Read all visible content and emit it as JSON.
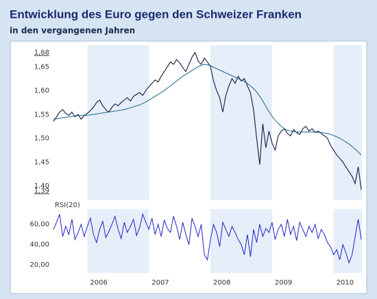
{
  "chart_data": [
    {
      "type": "line",
      "title": "Entwicklung des Euro gegen den Schweizer Franken",
      "subtitle": "in den vergangenen Jahren",
      "x": [
        2005.45,
        2005.5,
        2005.55,
        2005.6,
        2005.65,
        2005.7,
        2005.75,
        2005.8,
        2005.85,
        2005.9,
        2005.95,
        2006,
        2006.05,
        2006.1,
        2006.15,
        2006.2,
        2006.25,
        2006.3,
        2006.35,
        2006.4,
        2006.45,
        2006.5,
        2006.55,
        2006.6,
        2006.65,
        2006.7,
        2006.75,
        2006.8,
        2006.85,
        2006.9,
        2006.95,
        2007,
        2007.05,
        2007.1,
        2007.15,
        2007.2,
        2007.25,
        2007.3,
        2007.35,
        2007.4,
        2007.45,
        2007.5,
        2007.55,
        2007.6,
        2007.65,
        2007.7,
        2007.75,
        2007.8,
        2007.85,
        2007.9,
        2007.95,
        2008,
        2008.05,
        2008.1,
        2008.15,
        2008.2,
        2008.25,
        2008.3,
        2008.35,
        2008.4,
        2008.45,
        2008.5,
        2008.55,
        2008.6,
        2008.65,
        2008.7,
        2008.75,
        2008.8,
        2008.85,
        2008.9,
        2008.95,
        2009,
        2009.05,
        2009.1,
        2009.15,
        2009.2,
        2009.25,
        2009.3,
        2009.35,
        2009.4,
        2009.45,
        2009.5,
        2009.55,
        2009.6,
        2009.65,
        2009.7,
        2009.75,
        2009.8,
        2009.85,
        2009.9,
        2009.95,
        2010,
        2010.05,
        2010.1,
        2010.15,
        2010.2,
        2010.25,
        2010.3,
        2010.35,
        2010.4,
        2010.45
      ],
      "series": [
        {
          "color": "#14173f",
          "values": [
            1.535,
            1.545,
            1.555,
            1.56,
            1.552,
            1.548,
            1.555,
            1.545,
            1.55,
            1.54,
            1.548,
            1.552,
            1.558,
            1.565,
            1.575,
            1.58,
            1.568,
            1.56,
            1.555,
            1.565,
            1.572,
            1.568,
            1.575,
            1.58,
            1.585,
            1.578,
            1.588,
            1.592,
            1.596,
            1.59,
            1.6,
            1.608,
            1.615,
            1.622,
            1.618,
            1.63,
            1.64,
            1.65,
            1.66,
            1.655,
            1.665,
            1.658,
            1.648,
            1.64,
            1.655,
            1.67,
            1.68,
            1.662,
            1.655,
            1.668,
            1.66,
            1.65,
            1.62,
            1.6,
            1.585,
            1.555,
            1.59,
            1.61,
            1.625,
            1.615,
            1.63,
            1.62,
            1.625,
            1.61,
            1.595,
            1.56,
            1.5,
            1.445,
            1.53,
            1.48,
            1.515,
            1.49,
            1.475,
            1.505,
            1.515,
            1.52,
            1.51,
            1.505,
            1.518,
            1.512,
            1.508,
            1.52,
            1.525,
            1.515,
            1.52,
            1.512,
            1.515,
            1.51,
            1.505,
            1.5,
            1.485,
            1.475,
            1.465,
            1.458,
            1.45,
            1.44,
            1.43,
            1.42,
            1.405,
            1.44,
            1.392
          ]
        },
        {
          "color": "#17688a",
          "values": [
            1.54,
            1.541,
            1.542,
            1.543,
            1.544,
            1.545,
            1.546,
            1.547,
            1.547,
            1.548,
            1.548,
            1.548,
            1.549,
            1.55,
            1.551,
            1.552,
            1.553,
            1.554,
            1.555,
            1.556,
            1.557,
            1.558,
            1.559,
            1.56,
            1.562,
            1.564,
            1.566,
            1.568,
            1.57,
            1.573,
            1.576,
            1.58,
            1.584,
            1.588,
            1.592,
            1.596,
            1.6,
            1.605,
            1.61,
            1.615,
            1.62,
            1.625,
            1.63,
            1.634,
            1.638,
            1.642,
            1.646,
            1.65,
            1.653,
            1.655,
            1.654,
            1.652,
            1.649,
            1.646,
            1.643,
            1.64,
            1.637,
            1.634,
            1.631,
            1.628,
            1.625,
            1.622,
            1.619,
            1.615,
            1.61,
            1.604,
            1.597,
            1.588,
            1.578,
            1.567,
            1.556,
            1.546,
            1.538,
            1.531,
            1.525,
            1.52,
            1.517,
            1.515,
            1.514,
            1.513,
            1.513,
            1.513,
            1.513,
            1.513,
            1.513,
            1.513,
            1.512,
            1.512,
            1.511,
            1.51,
            1.508,
            1.506,
            1.503,
            1.5,
            1.496,
            1.492,
            1.488,
            1.483,
            1.477,
            1.471,
            1.465
          ]
        }
      ],
      "xlim": [
        2005.45,
        2010.46
      ],
      "ylim": [
        1.37,
        1.695
      ],
      "yticks": [
        {
          "value": 1.68,
          "label": "1,68"
        },
        {
          "value": 1.65,
          "label": "1,65"
        },
        {
          "value": 1.6,
          "label": "1,60"
        },
        {
          "value": 1.55,
          "label": "1,55"
        },
        {
          "value": 1.5,
          "label": "1,50"
        },
        {
          "value": 1.45,
          "label": "1,45"
        },
        {
          "value": 1.4,
          "label": "1,40"
        },
        {
          "value": 1.39,
          "label": "1,39"
        }
      ]
    },
    {
      "type": "line",
      "x": [
        2005.45,
        2005.5,
        2005.55,
        2005.6,
        2005.65,
        2005.7,
        2005.75,
        2005.8,
        2005.85,
        2005.9,
        2005.95,
        2006,
        2006.05,
        2006.1,
        2006.15,
        2006.2,
        2006.25,
        2006.3,
        2006.35,
        2006.4,
        2006.45,
        2006.5,
        2006.55,
        2006.6,
        2006.65,
        2006.7,
        2006.75,
        2006.8,
        2006.85,
        2006.9,
        2006.95,
        2007,
        2007.05,
        2007.1,
        2007.15,
        2007.2,
        2007.25,
        2007.3,
        2007.35,
        2007.4,
        2007.45,
        2007.5,
        2007.55,
        2007.6,
        2007.65,
        2007.7,
        2007.75,
        2007.8,
        2007.85,
        2007.9,
        2007.95,
        2008,
        2008.05,
        2008.1,
        2008.15,
        2008.2,
        2008.25,
        2008.3,
        2008.35,
        2008.4,
        2008.45,
        2008.5,
        2008.55,
        2008.6,
        2008.65,
        2008.7,
        2008.75,
        2008.8,
        2008.85,
        2008.9,
        2008.95,
        2009,
        2009.05,
        2009.1,
        2009.15,
        2009.2,
        2009.25,
        2009.3,
        2009.35,
        2009.4,
        2009.45,
        2009.5,
        2009.55,
        2009.6,
        2009.65,
        2009.7,
        2009.75,
        2009.8,
        2009.85,
        2009.9,
        2009.95,
        2010,
        2010.05,
        2010.1,
        2010.15,
        2010.2,
        2010.25,
        2010.3,
        2010.35,
        2010.4,
        2010.45
      ],
      "series": [
        {
          "name": "RSI(20)",
          "color": "#1f22c4",
          "values": [
            55,
            62,
            70,
            48,
            58,
            50,
            65,
            45,
            52,
            60,
            48,
            58,
            66,
            50,
            42,
            55,
            63,
            47,
            53,
            60,
            68,
            55,
            46,
            62,
            52,
            58,
            65,
            49,
            57,
            70,
            62,
            55,
            66,
            50,
            60,
            48,
            64,
            56,
            52,
            68,
            58,
            45,
            62,
            50,
            40,
            66,
            58,
            48,
            60,
            30,
            25,
            45,
            60,
            52,
            38,
            62,
            55,
            48,
            58,
            52,
            45,
            40,
            30,
            50,
            28,
            55,
            42,
            60,
            48,
            56,
            52,
            62,
            45,
            55,
            60,
            48,
            65,
            50,
            58,
            44,
            62,
            55,
            48,
            58,
            52,
            60,
            46,
            55,
            50,
            42,
            38,
            30,
            35,
            25,
            40,
            32,
            22,
            30,
            48,
            65,
            45
          ]
        }
      ],
      "xlim": [
        2005.45,
        2010.46
      ],
      "ylim": [
        12,
        75
      ],
      "yticks": [
        {
          "value": 60,
          "label": "60,00"
        },
        {
          "value": 40,
          "label": "40,00"
        },
        {
          "value": 20,
          "label": "20,00"
        }
      ],
      "xticks": [
        2006,
        2007,
        2008,
        2009,
        2010
      ]
    }
  ]
}
